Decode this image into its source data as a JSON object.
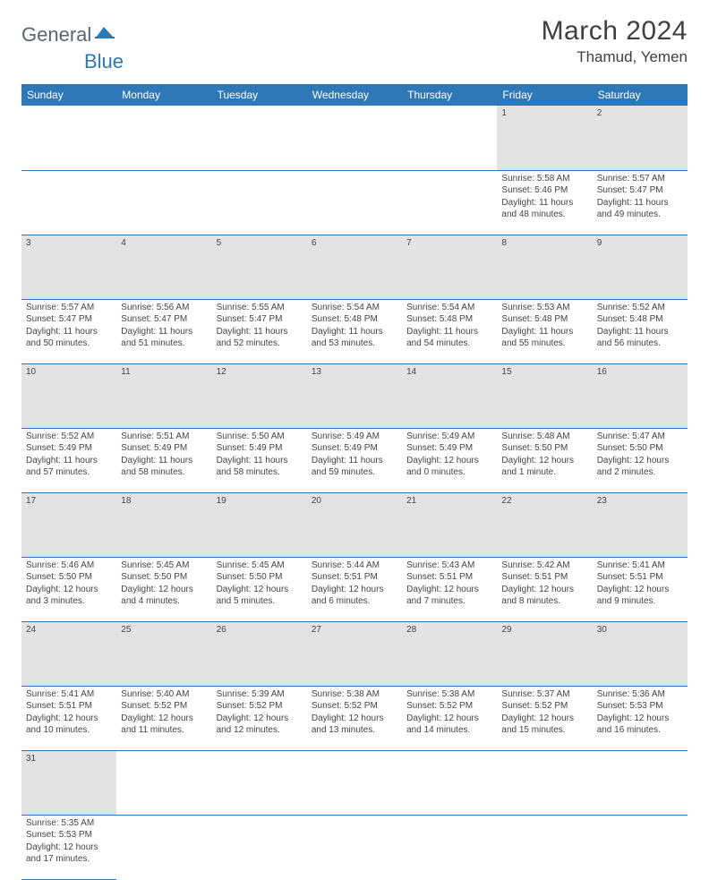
{
  "brand": {
    "part1": "General",
    "part2": "Blue"
  },
  "title": "March 2024",
  "location": "Thamud, Yemen",
  "colors": {
    "header_bg": "#2f78b7",
    "header_fg": "#ffffff",
    "daynum_bg": "#e3e3e3",
    "row_border": "#2f78b7",
    "logo_gray": "#5a6570",
    "logo_blue": "#2f78b7"
  },
  "weekdays": [
    "Sunday",
    "Monday",
    "Tuesday",
    "Wednesday",
    "Thursday",
    "Friday",
    "Saturday"
  ],
  "weeks": [
    [
      null,
      null,
      null,
      null,
      null,
      {
        "n": "1",
        "sunrise": "Sunrise: 5:58 AM",
        "sunset": "Sunset: 5:46 PM",
        "daylight": "Daylight: 11 hours and 48 minutes."
      },
      {
        "n": "2",
        "sunrise": "Sunrise: 5:57 AM",
        "sunset": "Sunset: 5:47 PM",
        "daylight": "Daylight: 11 hours and 49 minutes."
      }
    ],
    [
      {
        "n": "3",
        "sunrise": "Sunrise: 5:57 AM",
        "sunset": "Sunset: 5:47 PM",
        "daylight": "Daylight: 11 hours and 50 minutes."
      },
      {
        "n": "4",
        "sunrise": "Sunrise: 5:56 AM",
        "sunset": "Sunset: 5:47 PM",
        "daylight": "Daylight: 11 hours and 51 minutes."
      },
      {
        "n": "5",
        "sunrise": "Sunrise: 5:55 AM",
        "sunset": "Sunset: 5:47 PM",
        "daylight": "Daylight: 11 hours and 52 minutes."
      },
      {
        "n": "6",
        "sunrise": "Sunrise: 5:54 AM",
        "sunset": "Sunset: 5:48 PM",
        "daylight": "Daylight: 11 hours and 53 minutes."
      },
      {
        "n": "7",
        "sunrise": "Sunrise: 5:54 AM",
        "sunset": "Sunset: 5:48 PM",
        "daylight": "Daylight: 11 hours and 54 minutes."
      },
      {
        "n": "8",
        "sunrise": "Sunrise: 5:53 AM",
        "sunset": "Sunset: 5:48 PM",
        "daylight": "Daylight: 11 hours and 55 minutes."
      },
      {
        "n": "9",
        "sunrise": "Sunrise: 5:52 AM",
        "sunset": "Sunset: 5:48 PM",
        "daylight": "Daylight: 11 hours and 56 minutes."
      }
    ],
    [
      {
        "n": "10",
        "sunrise": "Sunrise: 5:52 AM",
        "sunset": "Sunset: 5:49 PM",
        "daylight": "Daylight: 11 hours and 57 minutes."
      },
      {
        "n": "11",
        "sunrise": "Sunrise: 5:51 AM",
        "sunset": "Sunset: 5:49 PM",
        "daylight": "Daylight: 11 hours and 58 minutes."
      },
      {
        "n": "12",
        "sunrise": "Sunrise: 5:50 AM",
        "sunset": "Sunset: 5:49 PM",
        "daylight": "Daylight: 11 hours and 58 minutes."
      },
      {
        "n": "13",
        "sunrise": "Sunrise: 5:49 AM",
        "sunset": "Sunset: 5:49 PM",
        "daylight": "Daylight: 11 hours and 59 minutes."
      },
      {
        "n": "14",
        "sunrise": "Sunrise: 5:49 AM",
        "sunset": "Sunset: 5:49 PM",
        "daylight": "Daylight: 12 hours and 0 minutes."
      },
      {
        "n": "15",
        "sunrise": "Sunrise: 5:48 AM",
        "sunset": "Sunset: 5:50 PM",
        "daylight": "Daylight: 12 hours and 1 minute."
      },
      {
        "n": "16",
        "sunrise": "Sunrise: 5:47 AM",
        "sunset": "Sunset: 5:50 PM",
        "daylight": "Daylight: 12 hours and 2 minutes."
      }
    ],
    [
      {
        "n": "17",
        "sunrise": "Sunrise: 5:46 AM",
        "sunset": "Sunset: 5:50 PM",
        "daylight": "Daylight: 12 hours and 3 minutes."
      },
      {
        "n": "18",
        "sunrise": "Sunrise: 5:45 AM",
        "sunset": "Sunset: 5:50 PM",
        "daylight": "Daylight: 12 hours and 4 minutes."
      },
      {
        "n": "19",
        "sunrise": "Sunrise: 5:45 AM",
        "sunset": "Sunset: 5:50 PM",
        "daylight": "Daylight: 12 hours and 5 minutes."
      },
      {
        "n": "20",
        "sunrise": "Sunrise: 5:44 AM",
        "sunset": "Sunset: 5:51 PM",
        "daylight": "Daylight: 12 hours and 6 minutes."
      },
      {
        "n": "21",
        "sunrise": "Sunrise: 5:43 AM",
        "sunset": "Sunset: 5:51 PM",
        "daylight": "Daylight: 12 hours and 7 minutes."
      },
      {
        "n": "22",
        "sunrise": "Sunrise: 5:42 AM",
        "sunset": "Sunset: 5:51 PM",
        "daylight": "Daylight: 12 hours and 8 minutes."
      },
      {
        "n": "23",
        "sunrise": "Sunrise: 5:41 AM",
        "sunset": "Sunset: 5:51 PM",
        "daylight": "Daylight: 12 hours and 9 minutes."
      }
    ],
    [
      {
        "n": "24",
        "sunrise": "Sunrise: 5:41 AM",
        "sunset": "Sunset: 5:51 PM",
        "daylight": "Daylight: 12 hours and 10 minutes."
      },
      {
        "n": "25",
        "sunrise": "Sunrise: 5:40 AM",
        "sunset": "Sunset: 5:52 PM",
        "daylight": "Daylight: 12 hours and 11 minutes."
      },
      {
        "n": "26",
        "sunrise": "Sunrise: 5:39 AM",
        "sunset": "Sunset: 5:52 PM",
        "daylight": "Daylight: 12 hours and 12 minutes."
      },
      {
        "n": "27",
        "sunrise": "Sunrise: 5:38 AM",
        "sunset": "Sunset: 5:52 PM",
        "daylight": "Daylight: 12 hours and 13 minutes."
      },
      {
        "n": "28",
        "sunrise": "Sunrise: 5:38 AM",
        "sunset": "Sunset: 5:52 PM",
        "daylight": "Daylight: 12 hours and 14 minutes."
      },
      {
        "n": "29",
        "sunrise": "Sunrise: 5:37 AM",
        "sunset": "Sunset: 5:52 PM",
        "daylight": "Daylight: 12 hours and 15 minutes."
      },
      {
        "n": "30",
        "sunrise": "Sunrise: 5:36 AM",
        "sunset": "Sunset: 5:53 PM",
        "daylight": "Daylight: 12 hours and 16 minutes."
      }
    ],
    [
      {
        "n": "31",
        "sunrise": "Sunrise: 5:35 AM",
        "sunset": "Sunset: 5:53 PM",
        "daylight": "Daylight: 12 hours and 17 minutes."
      },
      null,
      null,
      null,
      null,
      null,
      null
    ]
  ]
}
